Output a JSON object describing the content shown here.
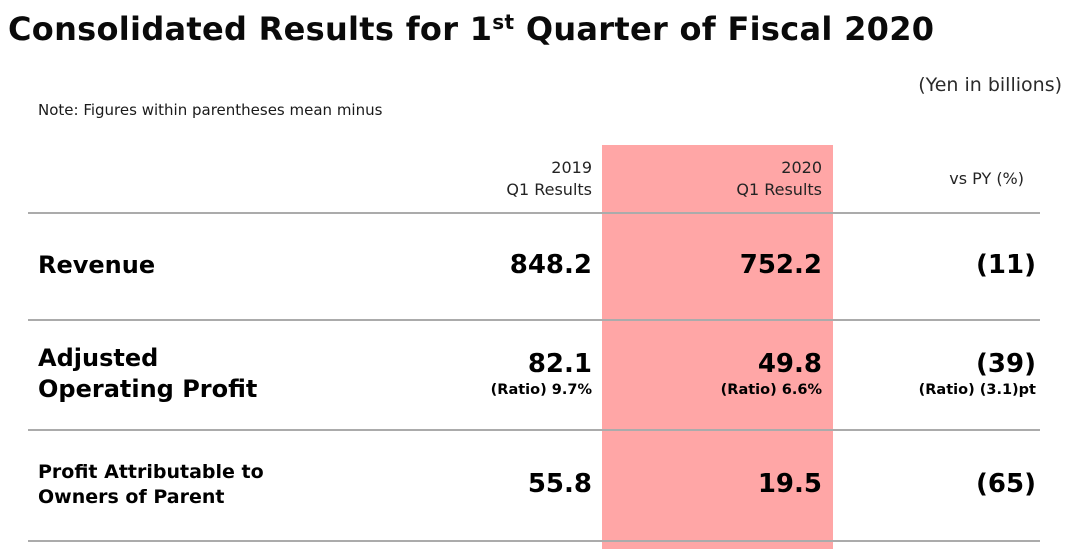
{
  "title": {
    "prefix": "Consolidated Results for 1",
    "superscript": "st",
    "suffix": " Quarter of Fiscal 2020"
  },
  "unit_label": "(Yen in billions)",
  "note": "Note: Figures within parentheses mean minus",
  "theme": {
    "highlight_color": "#ffa6a6",
    "rule_color": "#ababab"
  },
  "table": {
    "header": {
      "col_2019": {
        "line1": "2019",
        "line2": "Q1 Results"
      },
      "col_2020": {
        "line1": "2020",
        "line2": "Q1 Results"
      },
      "col_vs_py": "vs PY (%)"
    },
    "rows": [
      {
        "label": {
          "line1": "Revenue",
          "line2": ""
        },
        "q1_2019": {
          "value": "848.2",
          "ratio": ""
        },
        "q1_2020": {
          "value": "752.2",
          "ratio": ""
        },
        "vs_py": {
          "value": "(11)",
          "ratio": ""
        }
      },
      {
        "label": {
          "line1": "Adjusted",
          "line2": "Operating Profit"
        },
        "q1_2019": {
          "value": "82.1",
          "ratio": "(Ratio) 9.7%"
        },
        "q1_2020": {
          "value": "49.8",
          "ratio": "(Ratio) 6.6%"
        },
        "vs_py": {
          "value": "(39)",
          "ratio": "(Ratio) (3.1)pt"
        }
      },
      {
        "label": {
          "line1": "Profit Attributable to",
          "line2": "Owners of Parent"
        },
        "q1_2019": {
          "value": "55.8",
          "ratio": ""
        },
        "q1_2020": {
          "value": "19.5",
          "ratio": ""
        },
        "vs_py": {
          "value": "(65)",
          "ratio": ""
        }
      }
    ]
  }
}
